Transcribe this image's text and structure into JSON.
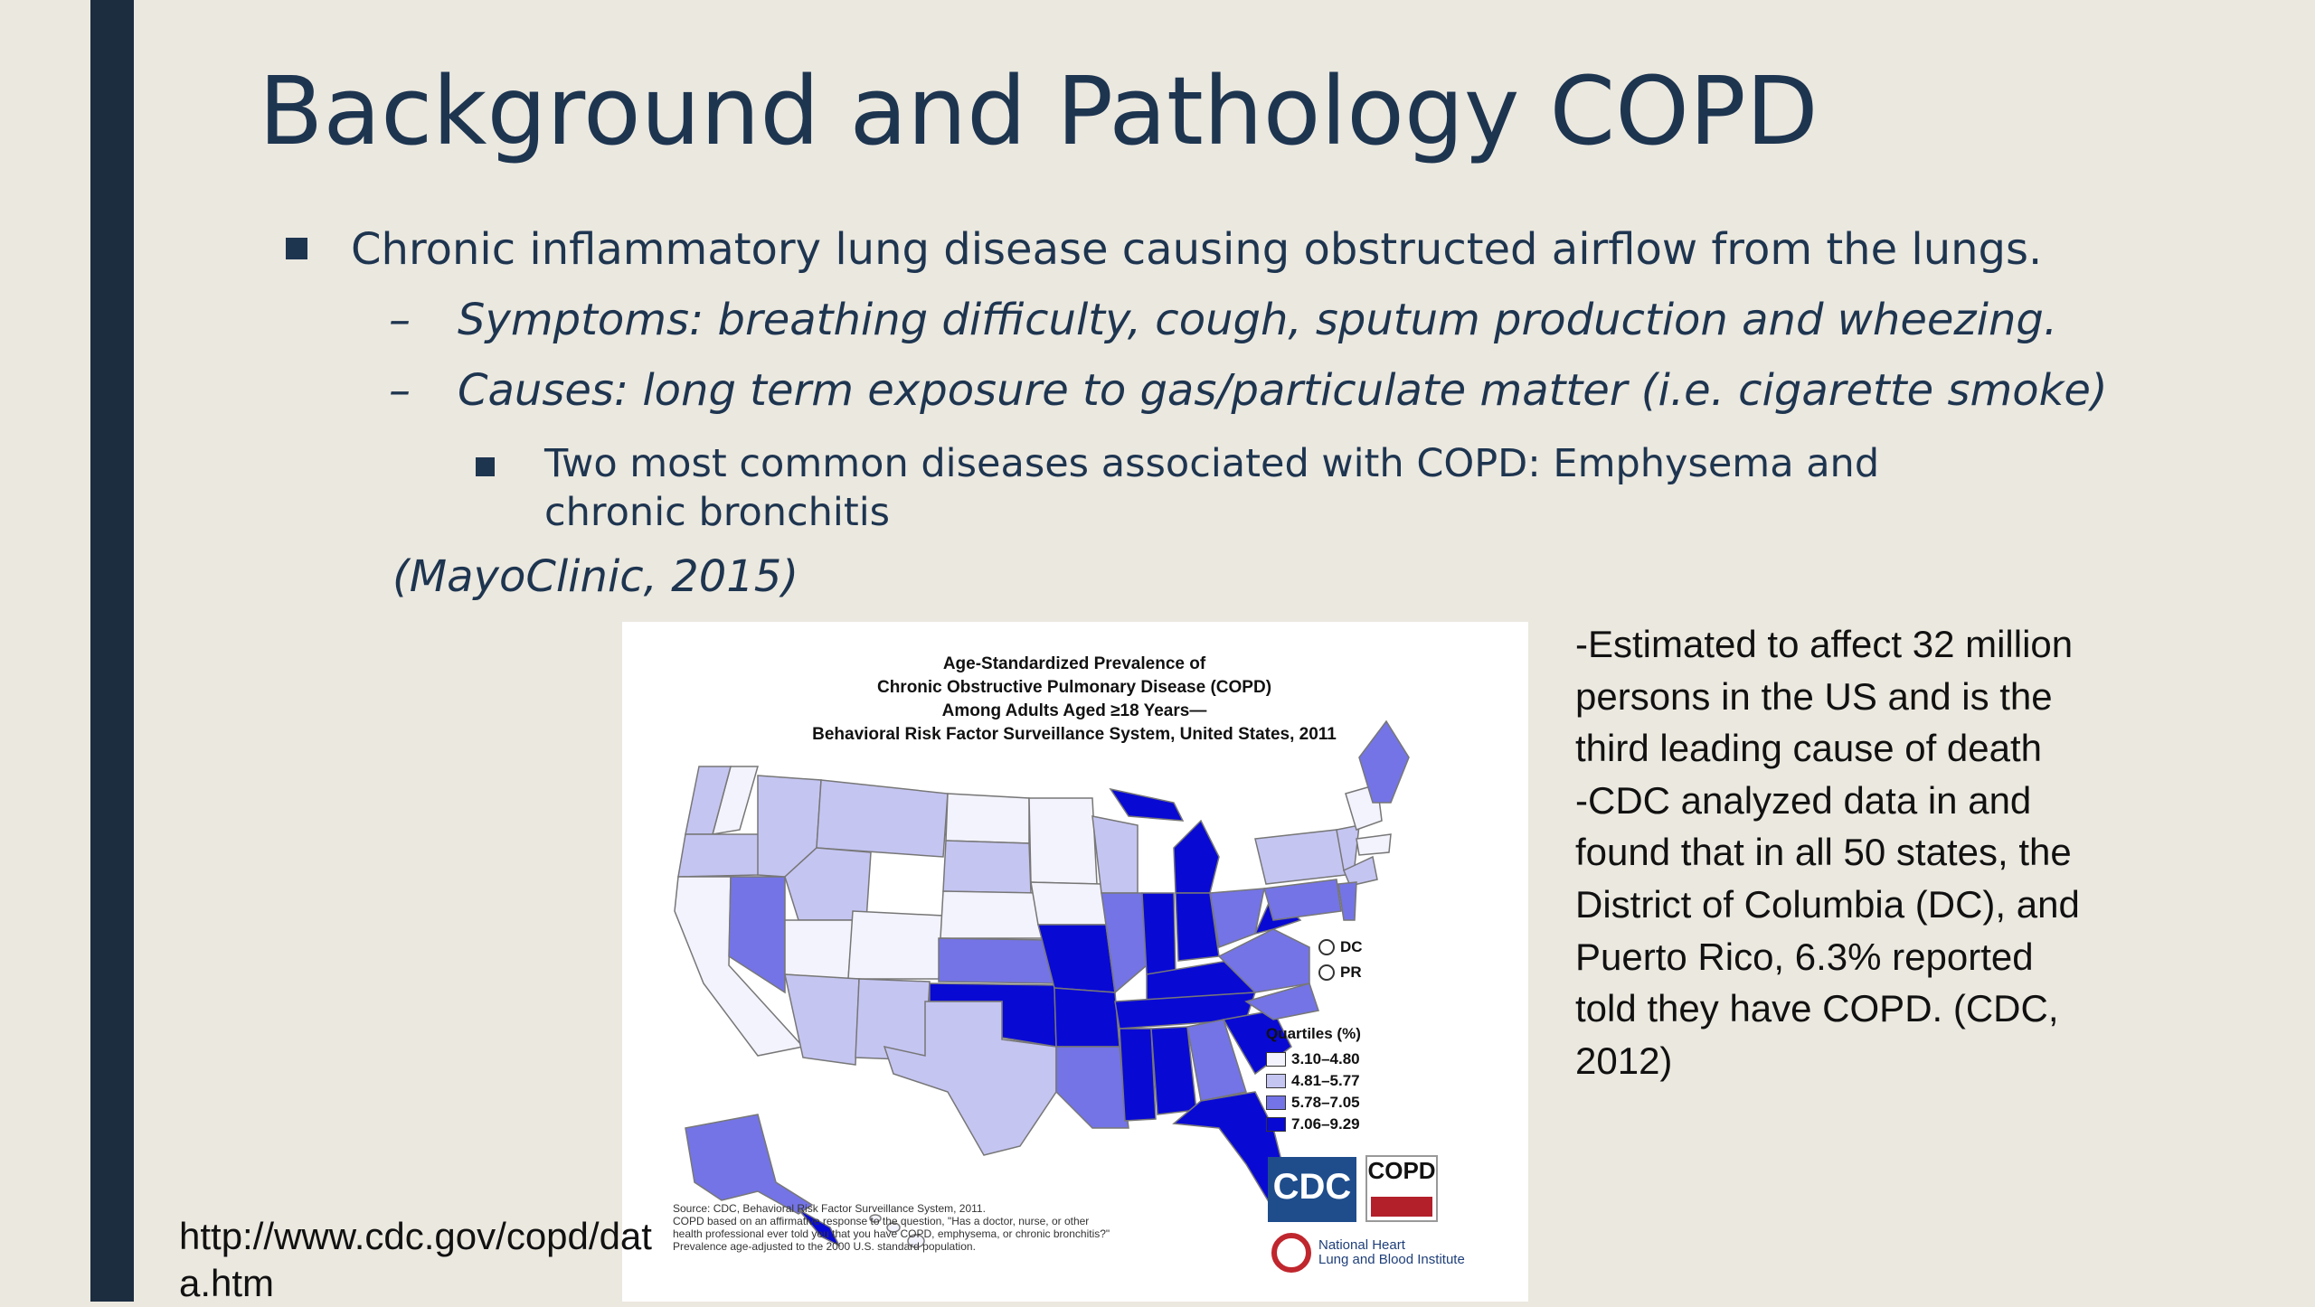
{
  "slide": {
    "title": "Background and Pathology COPD",
    "bullet1": "Chronic inflammatory lung disease causing obstructed airflow from the lungs.",
    "sub_dash": "–",
    "sub1": "Symptoms: breathing difficulty, cough, sputum production and wheezing.",
    "sub2": "Causes: long term exposure to gas/particulate matter  (i.e. cigarette smoke)",
    "subsub1": "Two most common diseases associated with COPD: Emphysema and chronic bronchitis",
    "citation": "(MayoClinic, 2015)",
    "stats_line1": "-Estimated to affect 32 million persons in the US and is the third leading cause of death",
    "stats_line2": "-CDC analyzed data in and found that in all 50 states, the District of Columbia (DC), and Puerto Rico, 6.3% reported told they have COPD.  (CDC, 2012)",
    "url": "http://www.cdc.gov/copd/data.htm"
  },
  "map": {
    "title_lines": [
      "Age-Standardized Prevalence of",
      "Chronic Obstructive Pulmonary Disease (COPD)",
      "Among Adults Aged ≥18 Years—",
      "Behavioral Risk Factor Surveillance System, United States, 2011"
    ],
    "territories": [
      "DC",
      "PR"
    ],
    "legend_title": "Quartiles (%)",
    "legend": [
      {
        "label": "3.10–4.80",
        "color": "#f3f3fd"
      },
      {
        "label": "4.81–5.77",
        "color": "#c5c5f2"
      },
      {
        "label": "5.78–7.05",
        "color": "#7474e6"
      },
      {
        "label": "7.06–9.29",
        "color": "#0909d4"
      }
    ],
    "source_lines": [
      "Source: CDC, Behavioral Risk Factor Surveillance System, 2011.",
      "COPD based on an affirmative response to the question, \"Has a doctor, nurse, or other",
      "health professional ever told you that you have COPD, emphysema, or chronic bronchitis?\"",
      "Prevalence age-adjusted to the 2000 U.S. standard population."
    ],
    "logo_cdc": "CDC",
    "logo_copd": "COPD",
    "logo_nhlbi_lines": [
      "National Heart",
      "Lung and Blood Institute"
    ]
  }
}
